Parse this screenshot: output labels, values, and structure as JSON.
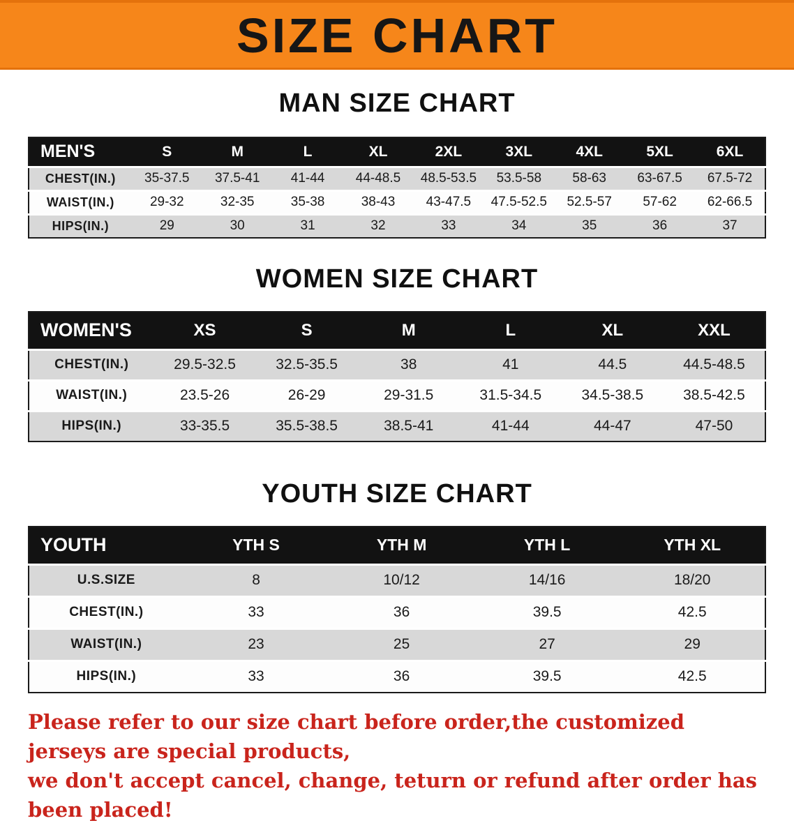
{
  "banner": {
    "title": "SIZE CHART"
  },
  "colors": {
    "banner_bg": "#f6861a",
    "banner_edge": "#e4720c",
    "header_bg": "#121212",
    "row_alt": "#d8d8d8",
    "disclaimer": "#c9241c"
  },
  "sections": [
    {
      "id": "men",
      "heading": "MAN SIZE CHART",
      "table": {
        "label": "MEN'S",
        "columns": [
          "S",
          "M",
          "L",
          "XL",
          "2XL",
          "3XL",
          "4XL",
          "5XL",
          "6XL"
        ],
        "rows": [
          {
            "label": "CHEST(IN.)",
            "values": [
              "35-37.5",
              "37.5-41",
              "41-44",
              "44-48.5",
              "48.5-53.5",
              "53.5-58",
              "58-63",
              "63-67.5",
              "67.5-72"
            ]
          },
          {
            "label": "WAIST(IN.)",
            "values": [
              "29-32",
              "32-35",
              "35-38",
              "38-43",
              "43-47.5",
              "47.5-52.5",
              "52.5-57",
              "57-62",
              "62-66.5"
            ]
          },
          {
            "label": "HIPS(IN.)",
            "values": [
              "29",
              "30",
              "31",
              "32",
              "33",
              "34",
              "35",
              "36",
              "37"
            ]
          }
        ]
      }
    },
    {
      "id": "women",
      "heading": "WOMEN SIZE CHART",
      "table": {
        "label": "WOMEN'S",
        "columns": [
          "XS",
          "S",
          "M",
          "L",
          "XL",
          "XXL"
        ],
        "rows": [
          {
            "label": "CHEST(IN.)",
            "values": [
              "29.5-32.5",
              "32.5-35.5",
              "38",
              "41",
              "44.5",
              "44.5-48.5"
            ]
          },
          {
            "label": "WAIST(IN.)",
            "values": [
              "23.5-26",
              "26-29",
              "29-31.5",
              "31.5-34.5",
              "34.5-38.5",
              "38.5-42.5"
            ]
          },
          {
            "label": "HIPS(IN.)",
            "values": [
              "33-35.5",
              "35.5-38.5",
              "38.5-41",
              "41-44",
              "44-47",
              "47-50"
            ]
          }
        ]
      }
    },
    {
      "id": "youth",
      "heading": "YOUTH SIZE CHART",
      "table": {
        "label": "YOUTH",
        "columns": [
          "YTH S",
          "YTH M",
          "YTH L",
          "YTH XL"
        ],
        "rows": [
          {
            "label": "U.S.SIZE",
            "values": [
              "8",
              "10/12",
              "14/16",
              "18/20"
            ]
          },
          {
            "label": "CHEST(IN.)",
            "values": [
              "33",
              "36",
              "39.5",
              "42.5"
            ]
          },
          {
            "label": "WAIST(IN.)",
            "values": [
              "23",
              "25",
              "27",
              "29"
            ]
          },
          {
            "label": "HIPS(IN.)",
            "values": [
              "33",
              "36",
              "39.5",
              "42.5"
            ]
          }
        ]
      }
    }
  ],
  "disclaimer": {
    "line1": "Please refer to our size chart before order,the customized jerseys are special products,",
    "line2": "we don't accept cancel, change, teturn or refund after order has been placed!"
  }
}
